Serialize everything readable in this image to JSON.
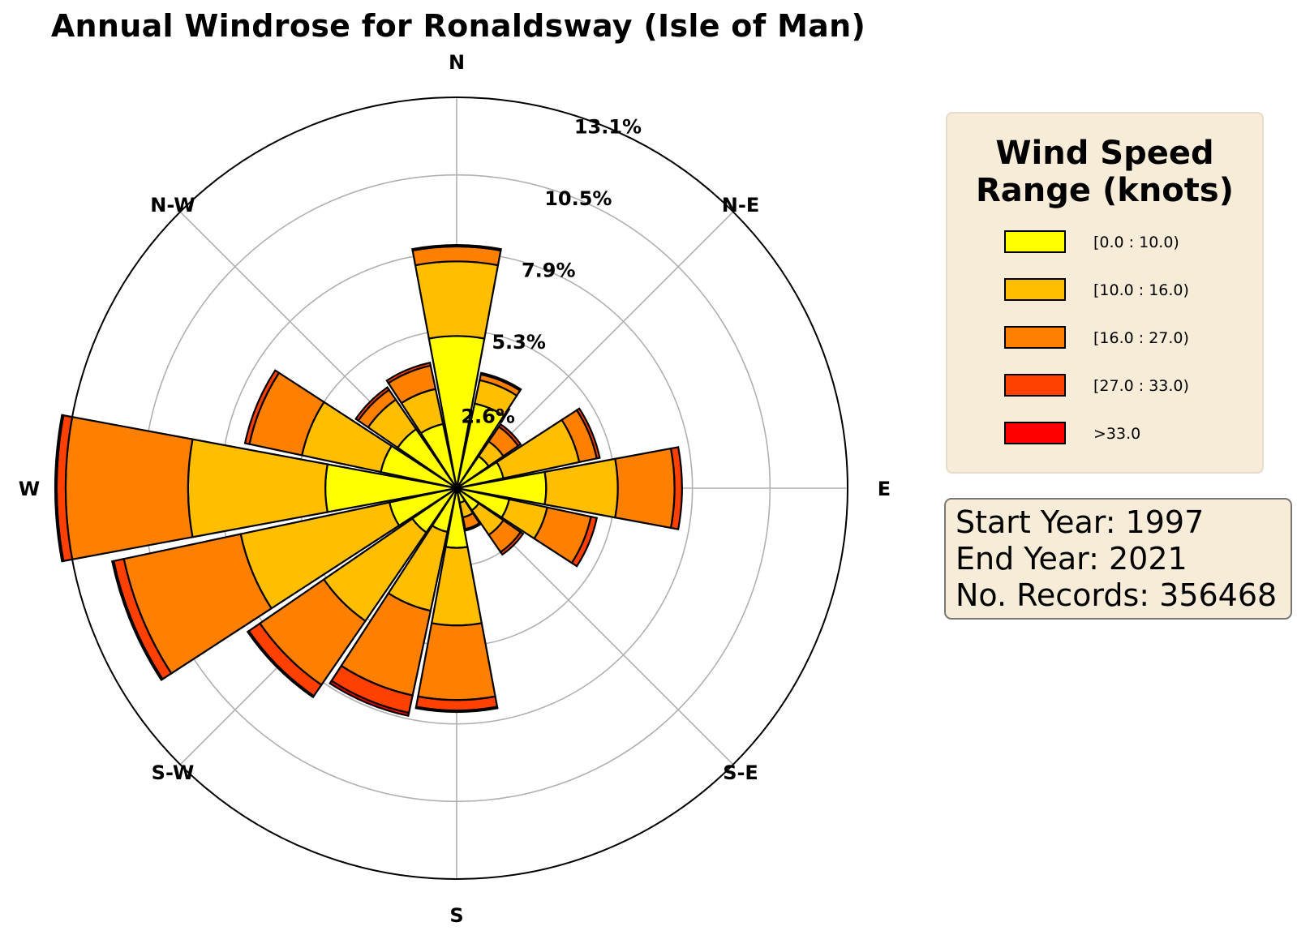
{
  "chart_data": {
    "type": "windrose",
    "title": "Annual Windrose for Ronaldsway (Isle of Man)",
    "unit": "%",
    "directions_deg": [
      0,
      22.5,
      45,
      67.5,
      90,
      112.5,
      135,
      157.5,
      180,
      202.5,
      225,
      247.5,
      270,
      292.5,
      315,
      337.5
    ],
    "compass_labels": [
      "N",
      "N-E",
      "E",
      "S-E",
      "S",
      "S-W",
      "W",
      "N-W"
    ],
    "radial_ticks": [
      {
        "value": 2.6,
        "label": "2.6%"
      },
      {
        "value": 5.3,
        "label": "5.3%"
      },
      {
        "value": 7.9,
        "label": "7.9%"
      },
      {
        "value": 10.5,
        "label": "10.5%"
      },
      {
        "value": 13.1,
        "label": "13.1%"
      }
    ],
    "rmax": 13.1,
    "grid": true,
    "series": [
      {
        "name": "[0.0 : 10.0)",
        "color": "#ffff00",
        "values": [
          5.1,
          2.9,
          1.3,
          1.6,
          3.0,
          1.8,
          0.9,
          0.5,
          2.0,
          1.5,
          1.8,
          2.3,
          4.4,
          2.6,
          2.4,
          2.2
        ]
      },
      {
        "name": "[10.0 : 16.0)",
        "color": "#ffbf00",
        "values": [
          2.5,
          0.8,
          0.6,
          2.6,
          2.4,
          1.3,
          1.0,
          0.5,
          2.6,
          2.7,
          3.6,
          5.1,
          4.6,
          2.7,
          1.2,
          1.2
        ]
      },
      {
        "name": "[16.0 : 27.0)",
        "color": "#ff8000",
        "values": [
          0.5,
          0.2,
          0.6,
          0.6,
          1.9,
          1.5,
          0.7,
          0.4,
          2.5,
          2.9,
          2.6,
          4.0,
          4.1,
          1.8,
          0.4,
          0.8
        ]
      },
      {
        "name": "[27.0 : 33.0)",
        "color": "#ff4000",
        "values": [
          0.05,
          0.05,
          0.1,
          0.1,
          0.25,
          0.2,
          0.1,
          0.05,
          0.35,
          0.6,
          0.45,
          0.35,
          0.3,
          0.15,
          0.1,
          0.1
        ]
      },
      {
        "name": ">33.0",
        "color": "#ff0000",
        "values": [
          0.0,
          0.0,
          0.0,
          0.0,
          0.0,
          0.0,
          0.0,
          0.0,
          0.05,
          0.1,
          0.05,
          0.05,
          0.05,
          0.0,
          0.0,
          0.0
        ]
      }
    ],
    "legend": {
      "title": "Wind Speed Range (knots)",
      "placement": "right"
    }
  },
  "legend_title_line1": "Wind Speed",
  "legend_title_line2": "Range (knots)",
  "info": {
    "start": "Start Year: 1997",
    "end": "End Year: 2021",
    "records": "No. Records: 356468"
  }
}
